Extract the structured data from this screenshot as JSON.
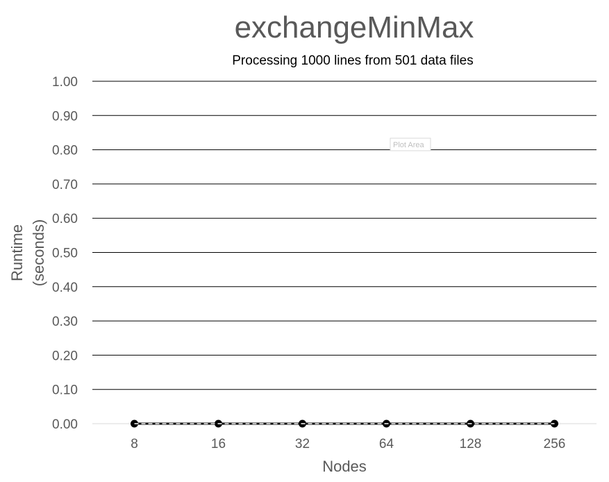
{
  "chart_data": {
    "type": "line",
    "title": "exchangeMinMax",
    "subtitle": "Processing 1000 lines from 501 data files",
    "xlabel": "Nodes",
    "ylabel": [
      "Runtime",
      "(seconds)"
    ],
    "categories": [
      "8",
      "16",
      "32",
      "64",
      "128",
      "256"
    ],
    "y_ticks": [
      "0.00",
      "0.10",
      "0.20",
      "0.30",
      "0.40",
      "0.50",
      "0.60",
      "0.70",
      "0.80",
      "0.90",
      "1.00"
    ],
    "ylim": [
      0,
      1
    ],
    "grid": "horizontal",
    "series": [
      {
        "values": [
          0,
          0,
          0,
          0,
          0,
          0
        ],
        "color": "#000000",
        "style": "solid-with-markers"
      },
      {
        "values": [
          0,
          0,
          0,
          0,
          0,
          0
        ],
        "color": "#ffffff",
        "style": "dashed-no-markers"
      }
    ],
    "plot_area_tooltip": "Plot Area"
  }
}
